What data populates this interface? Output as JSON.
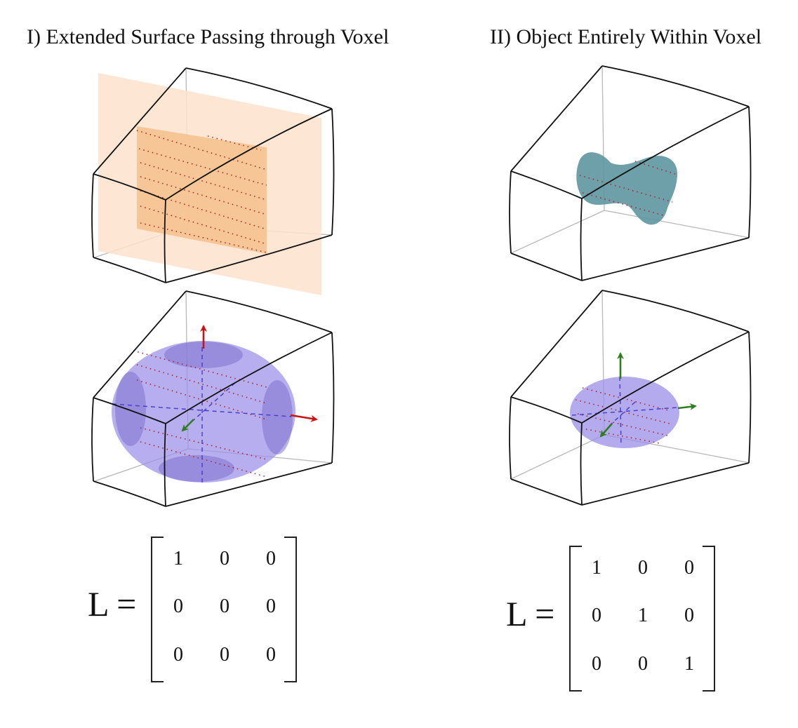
{
  "panels": [
    {
      "title": "I) Extended Surface Passing through Voxel",
      "matrix_label": "L =",
      "matrix": [
        [
          1,
          0,
          0
        ],
        [
          0,
          0,
          0
        ],
        [
          0,
          0,
          0
        ]
      ]
    },
    {
      "title": "II) Object Entirely Within Voxel",
      "matrix_label": "L =",
      "matrix": [
        [
          1,
          0,
          0
        ],
        [
          0,
          1,
          0
        ],
        [
          0,
          0,
          1
        ]
      ]
    }
  ],
  "colors": {
    "plane": "#fde6d2",
    "plane_inner": "#f6c594",
    "blob": "#5e96a0",
    "ellipsoid": "#9a8fe8",
    "axis_red": "#cc1111",
    "axis_green": "#2e7d1e",
    "dotted_red": "#c0392b"
  }
}
